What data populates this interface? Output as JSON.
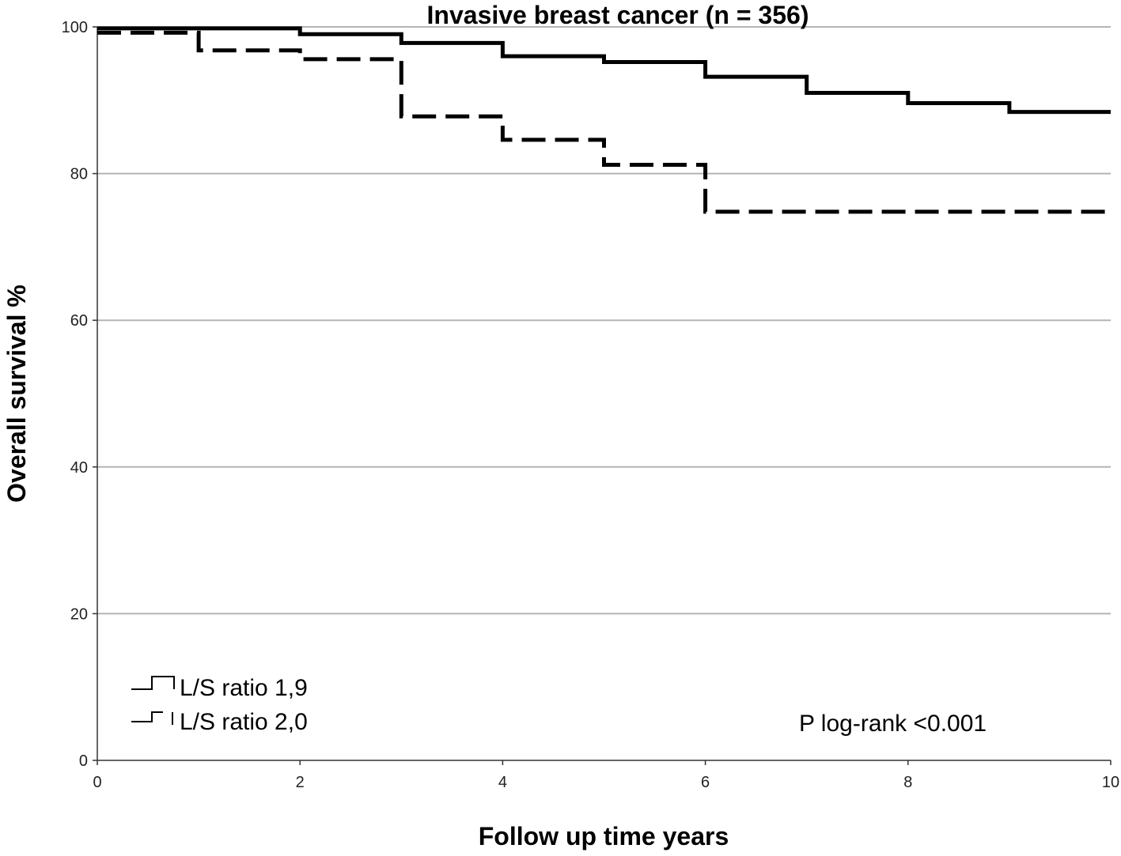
{
  "chart_data": {
    "type": "line",
    "subtype": "kaplan-meier step",
    "title": "Invasive breast cancer (n = 356)",
    "xlabel": "Follow up time years",
    "ylabel": "Overall survival %",
    "xlim": [
      0,
      10
    ],
    "ylim": [
      0,
      100
    ],
    "xticks": [
      0,
      2,
      4,
      6,
      8,
      10
    ],
    "yticks": [
      0,
      20,
      40,
      60,
      80,
      100
    ],
    "grid": "horizontal",
    "series": [
      {
        "name": "L/S ratio 1,9",
        "style": "solid",
        "x": [
          0,
          2,
          3,
          4,
          5,
          6,
          7,
          8,
          9,
          10
        ],
        "y": [
          99.8,
          99.0,
          97.8,
          96.0,
          95.2,
          93.2,
          91.0,
          89.6,
          88.4,
          88.4
        ]
      },
      {
        "name": "L/S ratio 2,0",
        "style": "dashed",
        "x": [
          0,
          1,
          2,
          3,
          4,
          5,
          6,
          10
        ],
        "y": [
          99.2,
          96.8,
          95.6,
          87.8,
          84.6,
          81.2,
          74.8,
          74.8
        ]
      }
    ],
    "legend": {
      "position": "bottom-left",
      "entries": [
        "L/S ratio 1,9",
        "L/S ratio 2,0"
      ]
    },
    "annotation": "P log-rank <0.001"
  },
  "colors": {
    "line": "#000000",
    "grid": "#b4b4b4",
    "axis": "#333333"
  }
}
